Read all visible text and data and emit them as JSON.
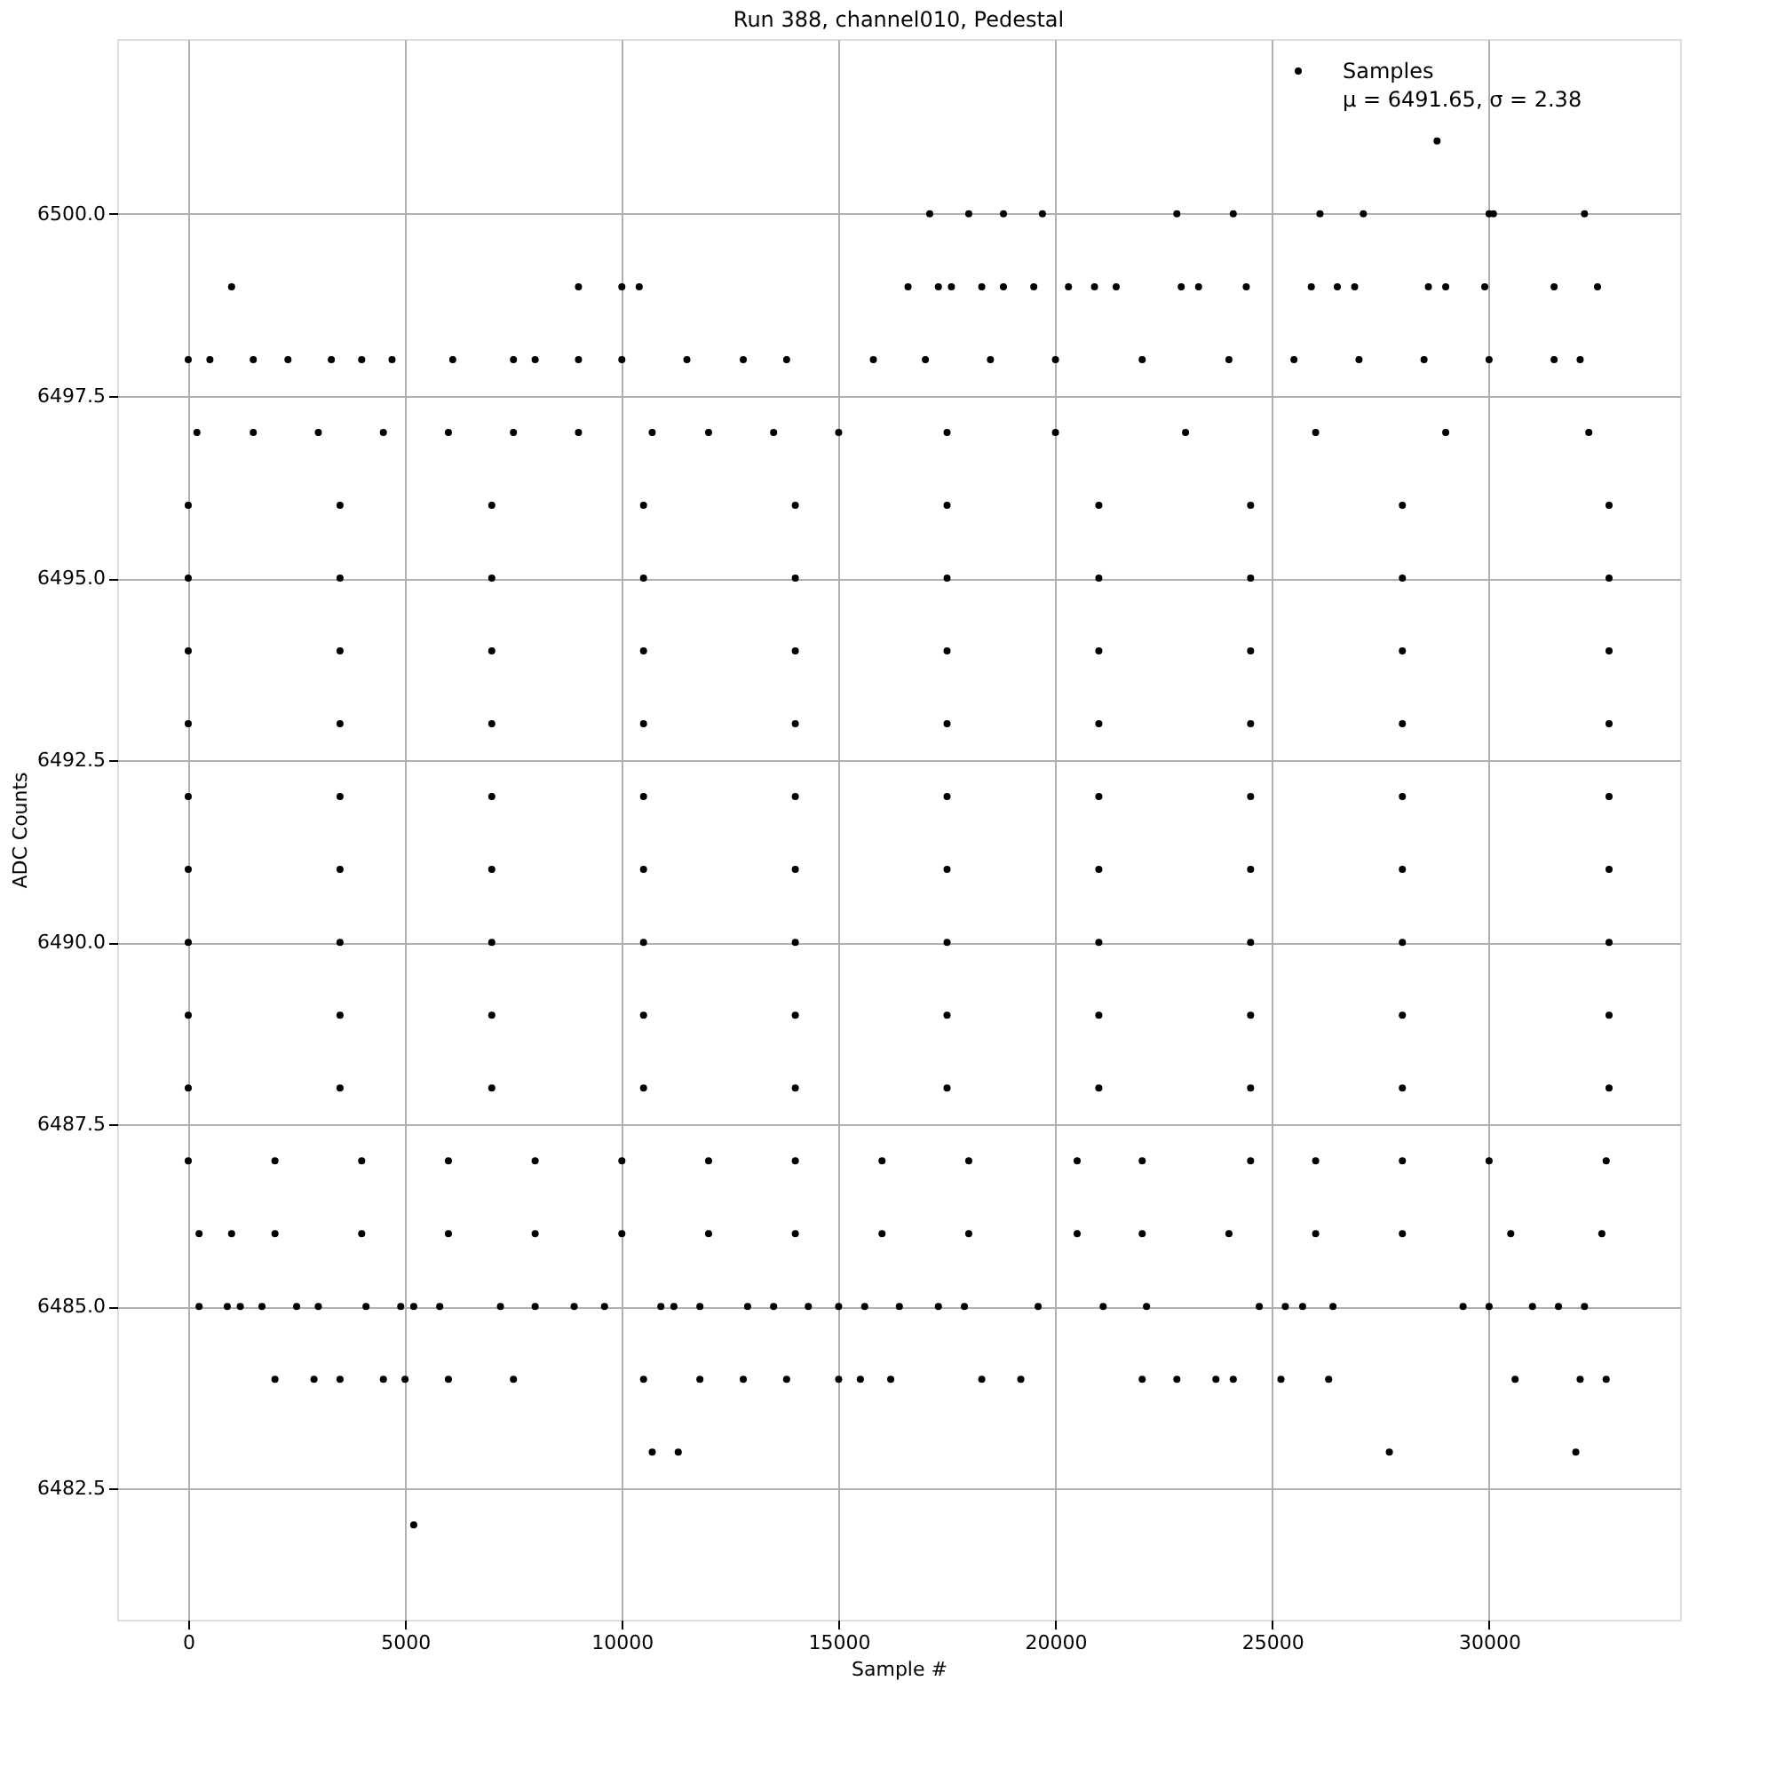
{
  "chart_data": {
    "type": "scatter",
    "title": "Run 388, channel010, Pedestal",
    "xlabel": "Sample #",
    "ylabel": "ADC Counts",
    "xlim": [
      -1638,
      34405
    ],
    "ylim": [
      6480.7,
      6502.4
    ],
    "xticks": [
      0,
      5000,
      10000,
      15000,
      20000,
      25000,
      30000
    ],
    "yticks": [
      6482.5,
      {
        "value": 6485,
        "label": "6485.0"
      },
      6487.5,
      {
        "value": 6490,
        "label": "6490.0"
      },
      6492.5,
      {
        "value": 6495,
        "label": "6495.0"
      },
      6497.5,
      {
        "value": 6500,
        "label": "6500.0"
      }
    ],
    "grid": true,
    "legend": "top right",
    "marker": "circle",
    "annotations": [
      "μ = 6491.65, σ = 2.38"
    ],
    "series": [
      {
        "name": "Samples",
        "color": "#000000",
        "x": [
          28800,
          17100,
          18000,
          18800,
          19700,
          22800,
          24100,
          26100,
          27100,
          30000,
          30100,
          32200,
          1000,
          9000,
          10000,
          10400,
          16600,
          17300,
          17600,
          18300,
          18800,
          19500,
          20300,
          20900,
          21400,
          22900,
          23300,
          24400,
          25900,
          26500,
          26900,
          28600,
          29000,
          29900,
          31500,
          32500,
          0,
          500,
          1500,
          2300,
          3300,
          4000,
          4700,
          6100,
          7500,
          8000,
          9000,
          10000,
          11500,
          12800,
          13800,
          15800,
          17000,
          18500,
          20000,
          22000,
          24000,
          25500,
          27000,
          28500,
          30000,
          31500,
          32100,
          200,
          1500,
          3000,
          4500,
          6000,
          7500,
          9000,
          10700,
          12000,
          13500,
          15000,
          17500,
          20000,
          23000,
          26000,
          29000,
          32300,
          0,
          3500,
          7000,
          10500,
          14000,
          17500,
          21000,
          24500,
          28000,
          32767,
          0,
          3500,
          7000,
          10500,
          14000,
          17500,
          21000,
          24500,
          28000,
          32767,
          0,
          3500,
          7000,
          10500,
          14000,
          17500,
          21000,
          24500,
          28000,
          32767,
          0,
          3500,
          7000,
          10500,
          14000,
          17500,
          21000,
          24500,
          28000,
          32767,
          0,
          3500,
          7000,
          10500,
          14000,
          17500,
          21000,
          24500,
          28000,
          32767,
          0,
          3500,
          7000,
          10500,
          14000,
          17500,
          21000,
          24500,
          28000,
          32767,
          0,
          3500,
          7000,
          10500,
          14000,
          17500,
          21000,
          24500,
          28000,
          32767,
          0,
          3500,
          7000,
          10500,
          14000,
          17500,
          21000,
          24500,
          28000,
          32767,
          0,
          3500,
          7000,
          10500,
          14000,
          17500,
          21000,
          24500,
          28000,
          32767,
          0,
          2000,
          4000,
          6000,
          8000,
          10000,
          12000,
          14000,
          16000,
          18000,
          20500,
          22000,
          24500,
          26000,
          28000,
          30000,
          32700,
          250,
          1000,
          2000,
          4000,
          6000,
          8000,
          10000,
          12000,
          14000,
          16000,
          18000,
          20500,
          22000,
          24000,
          26000,
          28000,
          30500,
          32600,
          250,
          900,
          1200,
          1700,
          2500,
          3000,
          4100,
          4900,
          5200,
          5800,
          7200,
          8000,
          8900,
          9600,
          10900,
          11200,
          11800,
          12900,
          13500,
          14300,
          15000,
          15600,
          16400,
          17300,
          17900,
          19600,
          21100,
          22100,
          24700,
          25300,
          25700,
          26400,
          29400,
          30000,
          31000,
          31600,
          32200,
          2000,
          2900,
          3500,
          4500,
          5000,
          6000,
          7500,
          10500,
          11800,
          12800,
          13800,
          15000,
          15500,
          16200,
          18300,
          19200,
          22000,
          22800,
          23700,
          24100,
          25200,
          26300,
          30600,
          32100,
          32700,
          10700,
          11300,
          27700,
          32000,
          5200
        ],
        "values": [
          6501,
          6500,
          6500,
          6500,
          6500,
          6500,
          6500,
          6500,
          6500,
          6500,
          6500,
          6500,
          6499,
          6499,
          6499,
          6499,
          6499,
          6499,
          6499,
          6499,
          6499,
          6499,
          6499,
          6499,
          6499,
          6499,
          6499,
          6499,
          6499,
          6499,
          6499,
          6499,
          6499,
          6499,
          6499,
          6499,
          6498,
          6498,
          6498,
          6498,
          6498,
          6498,
          6498,
          6498,
          6498,
          6498,
          6498,
          6498,
          6498,
          6498,
          6498,
          6498,
          6498,
          6498,
          6498,
          6498,
          6498,
          6498,
          6498,
          6498,
          6498,
          6498,
          6498,
          6497,
          6497,
          6497,
          6497,
          6497,
          6497,
          6497,
          6497,
          6497,
          6497,
          6497,
          6497,
          6497,
          6497,
          6497,
          6497,
          6497,
          6496,
          6496,
          6496,
          6496,
          6496,
          6496,
          6496,
          6496,
          6496,
          6496,
          6495,
          6495,
          6495,
          6495,
          6495,
          6495,
          6495,
          6495,
          6495,
          6495,
          6494,
          6494,
          6494,
          6494,
          6494,
          6494,
          6494,
          6494,
          6494,
          6494,
          6493,
          6493,
          6493,
          6493,
          6493,
          6493,
          6493,
          6493,
          6493,
          6493,
          6492,
          6492,
          6492,
          6492,
          6492,
          6492,
          6492,
          6492,
          6492,
          6492,
          6491,
          6491,
          6491,
          6491,
          6491,
          6491,
          6491,
          6491,
          6491,
          6491,
          6490,
          6490,
          6490,
          6490,
          6490,
          6490,
          6490,
          6490,
          6490,
          6490,
          6489,
          6489,
          6489,
          6489,
          6489,
          6489,
          6489,
          6489,
          6489,
          6489,
          6488,
          6488,
          6488,
          6488,
          6488,
          6488,
          6488,
          6488,
          6488,
          6488,
          6487,
          6487,
          6487,
          6487,
          6487,
          6487,
          6487,
          6487,
          6487,
          6487,
          6487,
          6487,
          6487,
          6487,
          6487,
          6487,
          6487,
          6486,
          6486,
          6486,
          6486,
          6486,
          6486,
          6486,
          6486,
          6486,
          6486,
          6486,
          6486,
          6486,
          6486,
          6486,
          6486,
          6486,
          6486,
          6485,
          6485,
          6485,
          6485,
          6485,
          6485,
          6485,
          6485,
          6485,
          6485,
          6485,
          6485,
          6485,
          6485,
          6485,
          6485,
          6485,
          6485,
          6485,
          6485,
          6485,
          6485,
          6485,
          6485,
          6485,
          6485,
          6485,
          6485,
          6485,
          6485,
          6485,
          6485,
          6485,
          6485,
          6485,
          6485,
          6485,
          6484,
          6484,
          6484,
          6484,
          6484,
          6484,
          6484,
          6484,
          6484,
          6484,
          6484,
          6484,
          6484,
          6484,
          6484,
          6484,
          6484,
          6484,
          6484,
          6484,
          6484,
          6484,
          6484,
          6484,
          6484,
          6483,
          6483,
          6483,
          6483,
          6482
        ]
      }
    ]
  }
}
